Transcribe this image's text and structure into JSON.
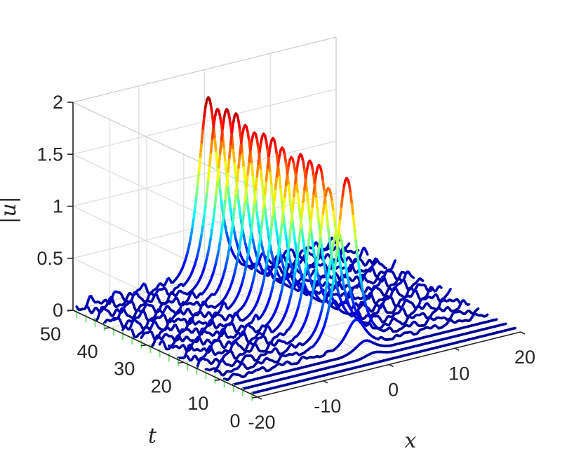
{
  "chart_data": {
    "type": "surface3d",
    "title": "",
    "xlabel": "x",
    "ylabel": "t",
    "zlabel": "|u|",
    "xlim": [
      -20,
      20
    ],
    "ylim": [
      0,
      50
    ],
    "zlim": [
      0,
      2
    ],
    "xticks": [
      "-20",
      "-10",
      "0",
      "10",
      "20"
    ],
    "yticks": [
      "0",
      "10",
      "20",
      "30",
      "40",
      "50"
    ],
    "zticks": [
      "0",
      "0.5",
      "1",
      "1.5",
      "2"
    ],
    "grid": true,
    "colormap": "jet",
    "colormap_colors": [
      "#00008f",
      "#0000ff",
      "#0080ff",
      "#00ffff",
      "#80ff80",
      "#ffff00",
      "#ff8000",
      "#ff0000",
      "#800000"
    ],
    "series": [
      {
        "description_free": true,
        "t_samples": [
          1.5,
          4,
          6.5,
          9,
          11.5,
          14,
          16.5,
          19,
          21.5,
          24,
          26.5,
          29,
          31.5,
          34,
          36.5,
          39,
          41.5,
          44,
          46.5,
          49
        ],
        "peak_height": [
          0.0,
          0.05,
          0.12,
          0.28,
          1.6,
          1.05,
          1.42,
          1.6,
          1.6,
          1.62,
          1.55,
          1.6,
          1.65,
          1.65,
          1.62,
          1.65,
          1.72,
          1.72,
          1.68,
          1.75
        ],
        "peak_center_x": 0,
        "peak_width": 1.3
      }
    ]
  }
}
